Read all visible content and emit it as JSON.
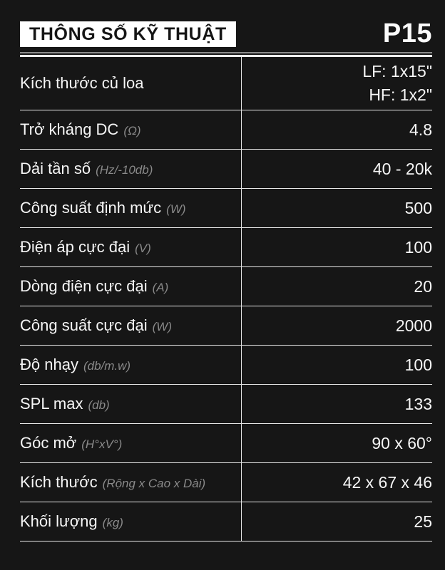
{
  "header": {
    "title": "THÔNG SỐ KỸ THUẬT",
    "model": "P15"
  },
  "colors": {
    "background": "#161616",
    "title_box_bg": "#ffffff",
    "title_box_text": "#151515",
    "label_text": "#f6f6f6",
    "unit_text": "#8a8a8a",
    "value_text": "#f6f6f6",
    "row_line": "#e8e8e8",
    "divider_top_line": "#8a8a8a",
    "divider_bottom_line": "#ededed"
  },
  "table": {
    "rows": [
      {
        "label": "Kích thước củ loa",
        "unit": "",
        "value_lines": [
          "LF: 1x15\"",
          "HF: 1x2\""
        ],
        "tall": true
      },
      {
        "label": "Trở kháng DC",
        "unit": "(Ω)",
        "value_lines": [
          "4.8"
        ],
        "tall": false
      },
      {
        "label": "Dải tần số",
        "unit": "(Hz/-10db)",
        "value_lines": [
          "40 - 20k"
        ],
        "tall": false
      },
      {
        "label": "Công suất định mức",
        "unit": "(W)",
        "value_lines": [
          "500"
        ],
        "tall": false
      },
      {
        "label": "Điện áp cực đại",
        "unit": "(V)",
        "value_lines": [
          "100"
        ],
        "tall": false
      },
      {
        "label": "Dòng điện cực đại",
        "unit": "(A)",
        "value_lines": [
          "20"
        ],
        "tall": false
      },
      {
        "label": "Công suất cực đại",
        "unit": "(W)",
        "value_lines": [
          "2000"
        ],
        "tall": false
      },
      {
        "label": "Độ nhạy",
        "unit": "(db/m.w)",
        "value_lines": [
          "100"
        ],
        "tall": false
      },
      {
        "label": "SPL max",
        "unit": "(db)",
        "value_lines": [
          "133"
        ],
        "tall": false
      },
      {
        "label": "Góc mở",
        "unit": "(H°xV°)",
        "value_lines": [
          "90 x 60°"
        ],
        "tall": false
      },
      {
        "label": "Kích thước",
        "unit": "(Rộng x Cao x Dài)",
        "value_lines": [
          "42 x 67 x 46"
        ],
        "tall": false
      },
      {
        "label": "Khối lượng",
        "unit": "(kg)",
        "value_lines": [
          "25"
        ],
        "tall": false
      }
    ]
  }
}
